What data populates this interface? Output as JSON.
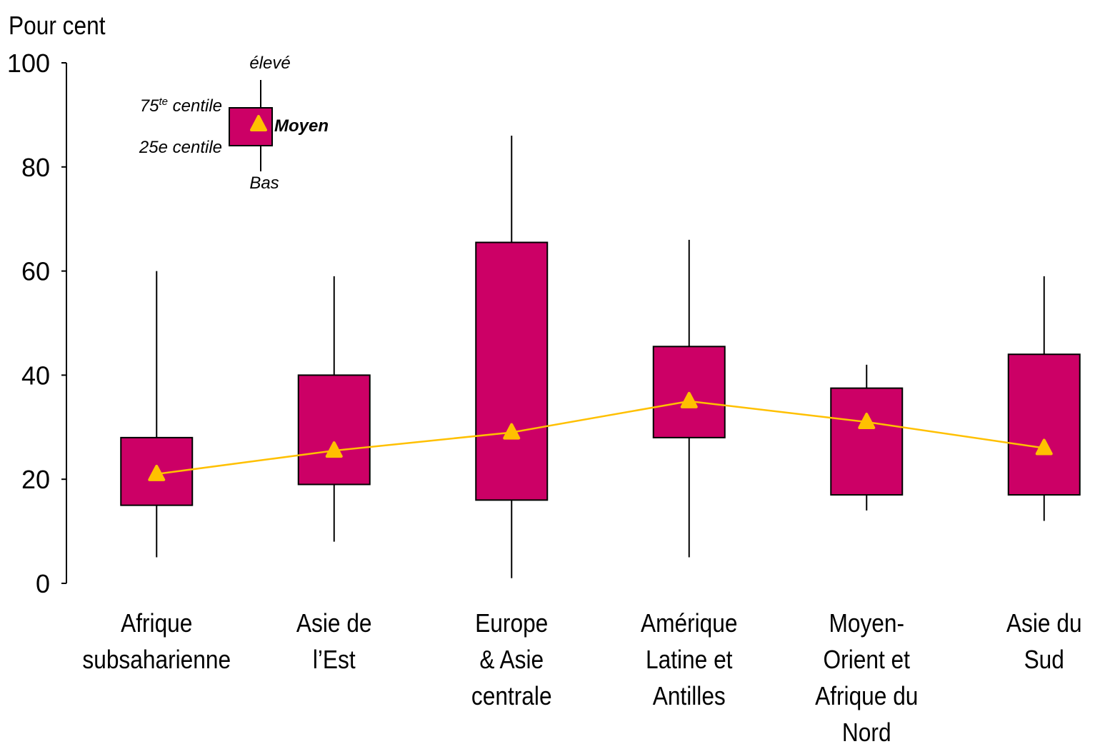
{
  "chart_data": {
    "type": "box",
    "y_axis_label": "Pour cent",
    "categories": [
      [
        "Afrique",
        "subsaharienne"
      ],
      [
        "Asie de",
        "l’Est"
      ],
      [
        "Europe",
        "& Asie",
        "centrale"
      ],
      [
        "Amérique",
        "Latine et",
        "Antilles"
      ],
      [
        "Moyen-",
        "Orient et",
        "Afrique du",
        "Nord"
      ],
      [
        "Asie du",
        "Sud"
      ]
    ],
    "low": [
      5,
      8,
      1,
      5,
      14,
      12
    ],
    "q1": [
      15,
      19,
      16,
      28,
      17,
      17
    ],
    "q3": [
      28,
      40,
      65.5,
      45.5,
      37.5,
      44
    ],
    "high": [
      60,
      59,
      86,
      66,
      42,
      59
    ],
    "mean": [
      21,
      25.5,
      29,
      35,
      31,
      26
    ],
    "box_color": "#cc0066",
    "mean_color": "#ffc000",
    "ylim": [
      0,
      100
    ],
    "yticks": [
      0,
      20,
      40,
      60,
      80,
      100
    ],
    "legend": {
      "high": "élevé",
      "q3": [
        "75",
        "te",
        " centile"
      ],
      "mean": "Moyen",
      "q1": "25e centile",
      "low": "Bas"
    }
  }
}
